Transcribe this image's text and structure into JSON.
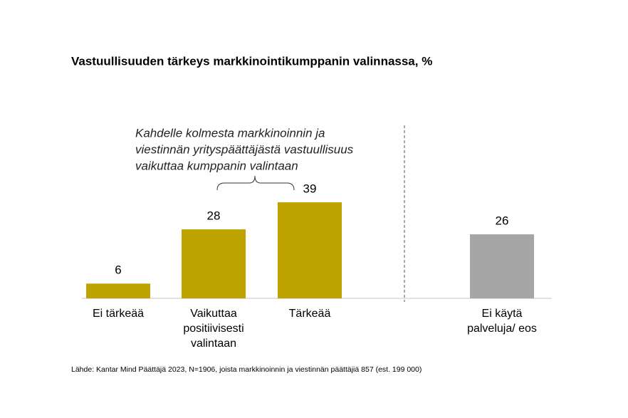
{
  "chart_data": {
    "type": "bar",
    "title": "Vastuullisuuden tärkeys markkinointikumppanin valinnassa, %",
    "categories": [
      "Ei tärkeää",
      "Vaikuttaa positiivisesti valintaan",
      "Tärkeää",
      "Ei käytä palveluja/ eos"
    ],
    "values": [
      6,
      28,
      39,
      26
    ],
    "colors": [
      "#bfa300",
      "#bfa300",
      "#bfa300",
      "#a6a6a6"
    ],
    "annotation": [
      "Kahdelle kolmesta markkinoinnin ja",
      "viestinnän yrityspäättäjästä vastuullisuus",
      "vaikuttaa kumppanin valintaan"
    ],
    "source": "Lähde: Kantar Mind Päättäjä 2023, N=1906, joista markkinoinnin ja viestinnän päättäjiä 857 (est. 199 000)"
  }
}
